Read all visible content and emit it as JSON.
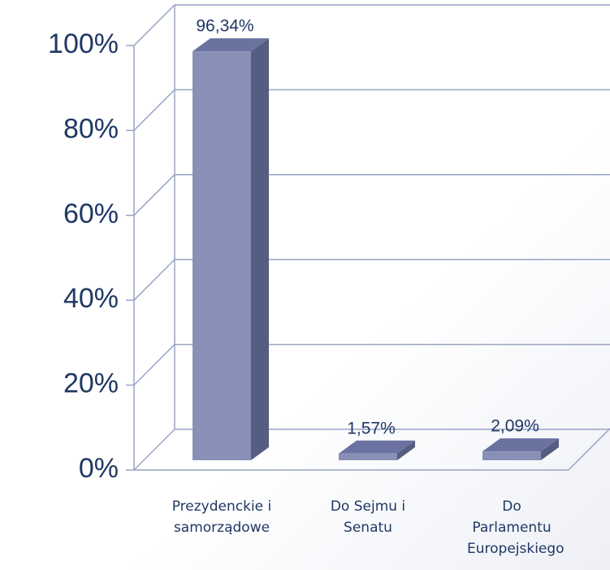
{
  "chart_data": {
    "type": "bar3d",
    "categories": [
      "Prezydenckie i samorządowe",
      "Do Sejmu i Senatu",
      "Do Parlamentu Europejskiego"
    ],
    "values": [
      96.34,
      1.57,
      2.09
    ],
    "value_labels": [
      "96,34%",
      "1,57%",
      "2,09%"
    ],
    "color": "#8890b8",
    "ylim": [
      0,
      100
    ],
    "yticks": [
      {
        "value": 0,
        "label": "0%"
      },
      {
        "value": 20,
        "label": "20%"
      },
      {
        "value": 40,
        "label": "40%"
      },
      {
        "value": 60,
        "label": "60%"
      },
      {
        "value": 80,
        "label": "80%"
      },
      {
        "value": 100,
        "label": "100%"
      }
    ],
    "grid": true
  }
}
